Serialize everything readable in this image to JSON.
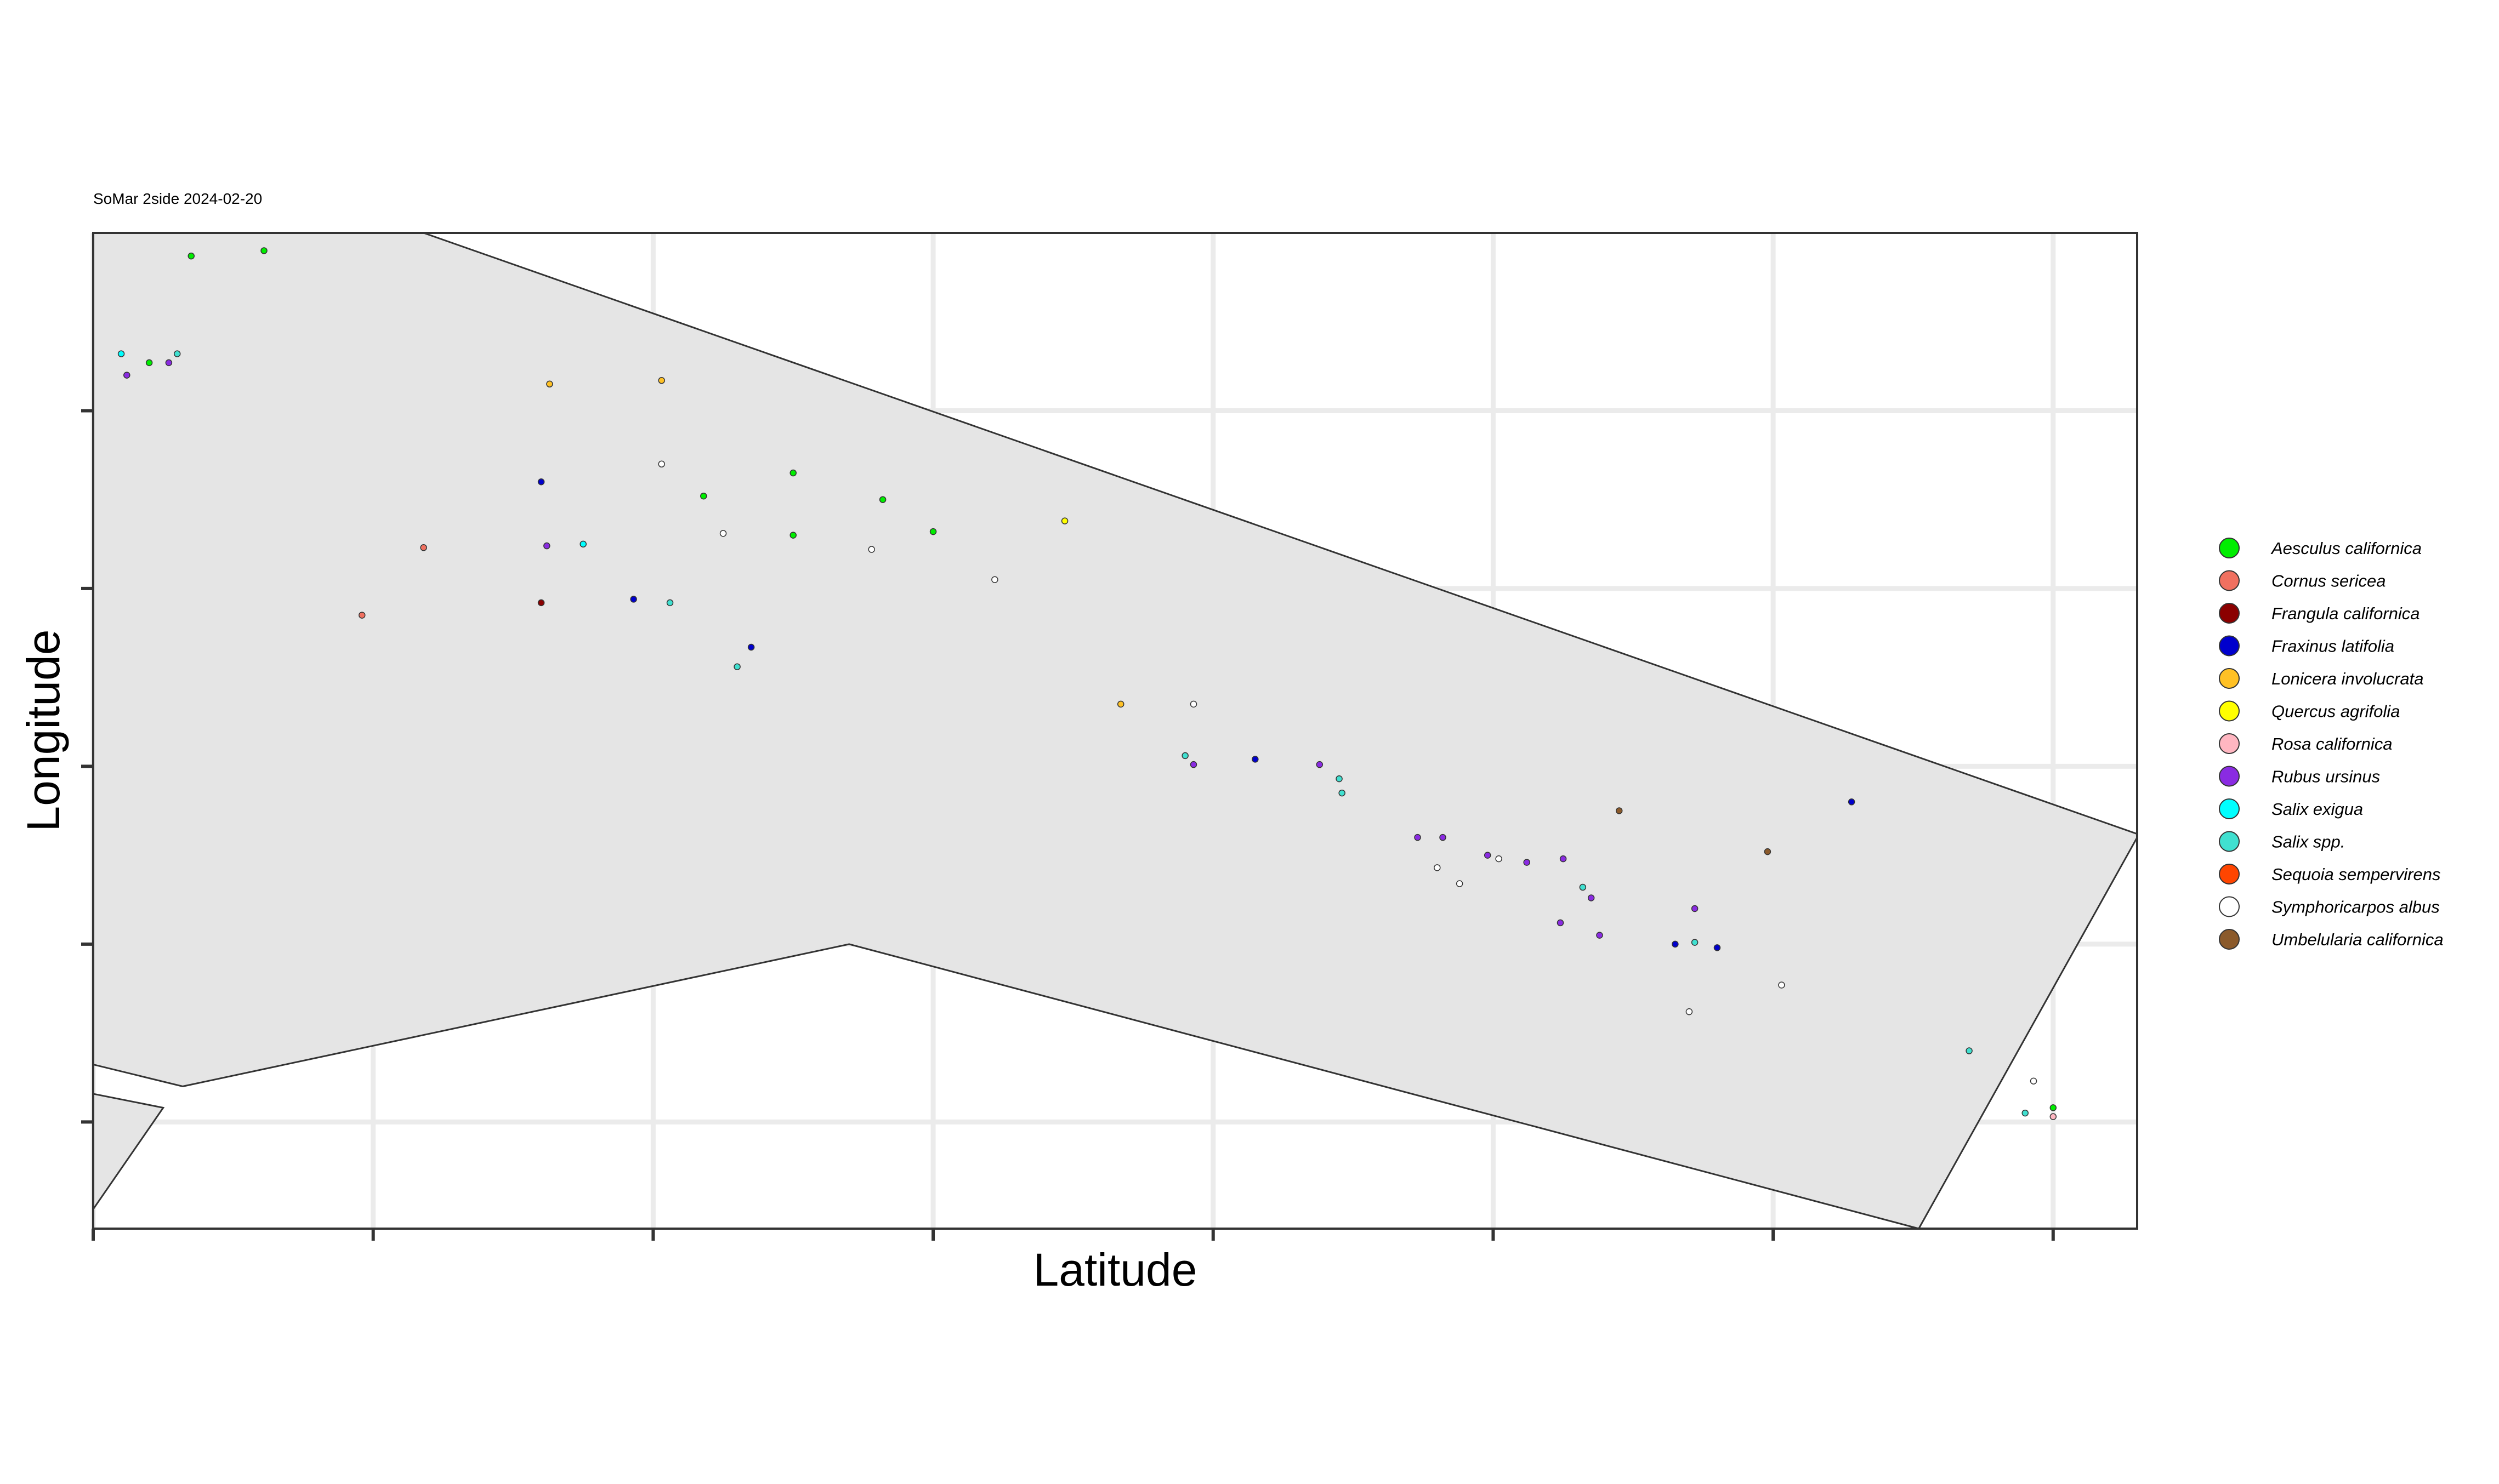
{
  "chart_data": {
    "type": "scatter",
    "title": "SoMar 2side 2024-02-20",
    "xlabel": "Latitude",
    "ylabel": "Longitude",
    "xlim": [
      0,
      7.3
    ],
    "ylim": [
      -0.6,
      5.0
    ],
    "x_ticks": [
      0,
      1,
      2,
      3,
      4,
      5,
      6,
      7
    ],
    "y_ticks": [
      0,
      1,
      2,
      3,
      4
    ],
    "tick_labels_shown": false,
    "grid": true,
    "legend_position": "right",
    "legend": [
      {
        "name": "Aesculus californica",
        "color": "#00ee00"
      },
      {
        "name": "Cornus sericea",
        "color": "#f07060"
      },
      {
        "name": "Frangula californica",
        "color": "#8b0000"
      },
      {
        "name": "Fraxinus latifolia",
        "color": "#0000cd"
      },
      {
        "name": "Lonicera involucrata",
        "color": "#ffc125"
      },
      {
        "name": "Quercus agrifolia",
        "color": "#ffff00"
      },
      {
        "name": "Rosa californica",
        "color": "#ffb6c1"
      },
      {
        "name": "Rubus ursinus",
        "color": "#8a2be2"
      },
      {
        "name": "Salix exigua",
        "color": "#00ffff"
      },
      {
        "name": "Salix spp.",
        "color": "#40e0d0"
      },
      {
        "name": "Sequoia sempervirens",
        "color": "#ff4500"
      },
      {
        "name": "Symphoricarpos albus",
        "color": "#ffffff"
      },
      {
        "name": "Umbelularia californica",
        "color": "#8b5a2b"
      }
    ],
    "regions": [
      {
        "name": "region-a",
        "points": [
          [
            -0.07,
            5.0
          ],
          [
            1.18,
            5.0
          ],
          [
            7.3,
            1.62
          ],
          [
            7.3,
            1.6
          ],
          [
            6.52,
            -0.6
          ],
          [
            6.52,
            -0.6
          ],
          [
            2.7,
            1.0
          ],
          [
            0.32,
            0.2
          ],
          [
            -0.07,
            0.35
          ]
        ]
      },
      {
        "name": "region-b",
        "points": [
          [
            -0.07,
            0.18
          ],
          [
            0.25,
            0.08
          ],
          [
            -0.07,
            -0.65
          ]
        ]
      }
    ],
    "series": [
      {
        "name": "Aesculus californica",
        "color": "#00ee00",
        "points": [
          [
            0.35,
            4.87
          ],
          [
            0.61,
            4.9
          ],
          [
            2.18,
            3.52
          ],
          [
            2.5,
            3.65
          ],
          [
            2.82,
            3.5
          ],
          [
            2.5,
            3.3
          ],
          [
            3.0,
            3.32
          ],
          [
            0.2,
            4.27
          ],
          [
            7.0,
            0.08
          ]
        ]
      },
      {
        "name": "Cornus sericea",
        "color": "#f07060",
        "points": [
          [
            1.18,
            3.23
          ],
          [
            0.96,
            2.85
          ]
        ]
      },
      {
        "name": "Frangula californica",
        "color": "#8b0000",
        "points": [
          [
            1.6,
            2.92
          ]
        ]
      },
      {
        "name": "Fraxinus latifolia",
        "color": "#0000cd",
        "points": [
          [
            1.6,
            3.6
          ],
          [
            1.93,
            2.94
          ],
          [
            2.35,
            2.67
          ],
          [
            4.15,
            2.04
          ],
          [
            5.65,
            1.0
          ],
          [
            5.8,
            0.98
          ],
          [
            6.28,
            1.8
          ]
        ]
      },
      {
        "name": "Lonicera involucrata",
        "color": "#ffc125",
        "points": [
          [
            1.63,
            4.15
          ],
          [
            2.03,
            4.17
          ],
          [
            3.67,
            2.35
          ]
        ]
      },
      {
        "name": "Quercus agrifolia",
        "color": "#ffff00",
        "points": [
          [
            3.47,
            3.38
          ]
        ]
      },
      {
        "name": "Rosa californica",
        "color": "#ffb6c1",
        "points": [
          [
            7.0,
            0.03
          ]
        ]
      },
      {
        "name": "Rubus ursinus",
        "color": "#8a2be2",
        "points": [
          [
            0.12,
            4.2
          ],
          [
            0.27,
            4.27
          ],
          [
            1.62,
            3.24
          ],
          [
            3.93,
            2.01
          ],
          [
            4.38,
            2.01
          ],
          [
            4.73,
            1.6
          ],
          [
            4.82,
            1.6
          ],
          [
            5.25,
            1.48
          ],
          [
            4.98,
            1.5
          ],
          [
            5.12,
            1.46
          ],
          [
            5.24,
            1.12
          ],
          [
            5.38,
            1.05
          ],
          [
            5.72,
            1.2
          ],
          [
            5.35,
            1.26
          ]
        ]
      },
      {
        "name": "Salix exigua",
        "color": "#00ffff",
        "points": [
          [
            0.1,
            4.32
          ],
          [
            1.75,
            3.25
          ]
        ]
      },
      {
        "name": "Salix spp.",
        "color": "#40e0d0",
        "points": [
          [
            2.06,
            2.92
          ],
          [
            2.3,
            2.56
          ],
          [
            3.9,
            2.06
          ],
          [
            4.45,
            1.93
          ],
          [
            4.46,
            1.85
          ],
          [
            5.32,
            1.32
          ],
          [
            5.72,
            1.01
          ],
          [
            6.7,
            0.4
          ],
          [
            6.9,
            0.05
          ],
          [
            0.3,
            4.32
          ]
        ]
      },
      {
        "name": "Symphoricarpos albus",
        "color": "#ffffff",
        "points": [
          [
            2.03,
            3.7
          ],
          [
            2.25,
            3.31
          ],
          [
            2.78,
            3.22
          ],
          [
            3.22,
            3.05
          ],
          [
            3.93,
            2.35
          ],
          [
            5.02,
            1.48
          ],
          [
            4.8,
            1.43
          ],
          [
            4.88,
            1.34
          ],
          [
            5.7,
            0.62
          ],
          [
            6.03,
            0.77
          ],
          [
            6.93,
            0.23
          ]
        ]
      },
      {
        "name": "Umbelularia californica",
        "color": "#8b5a2b",
        "points": [
          [
            5.45,
            1.75
          ],
          [
            5.98,
            1.52
          ]
        ]
      }
    ]
  }
}
